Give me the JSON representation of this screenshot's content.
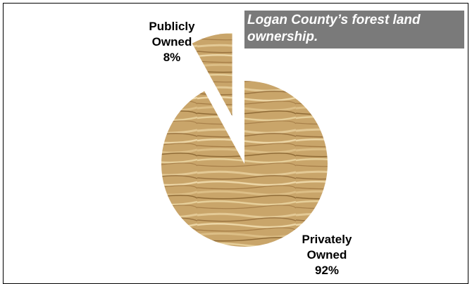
{
  "chart_data": {
    "type": "pie",
    "title": "Logan County’s forest land ownership.",
    "slices": [
      {
        "label_lines": [
          "Publicly",
          "Owned",
          "8%"
        ],
        "name": "Publicly Owned",
        "value": 8,
        "exploded": true
      },
      {
        "label_lines": [
          "Privately",
          "Owned",
          "92%"
        ],
        "name": "Privately Owned",
        "value": 92,
        "exploded": false
      }
    ],
    "fill": "oak wood texture",
    "legend": "none"
  },
  "colors": {
    "title_box": "#7a7a7a",
    "title_text": "#ffffff",
    "wood_base": "#c9a56a",
    "wood_light": "#e6cf9a",
    "wood_dark": "#8f6a35",
    "border": "#000000"
  }
}
